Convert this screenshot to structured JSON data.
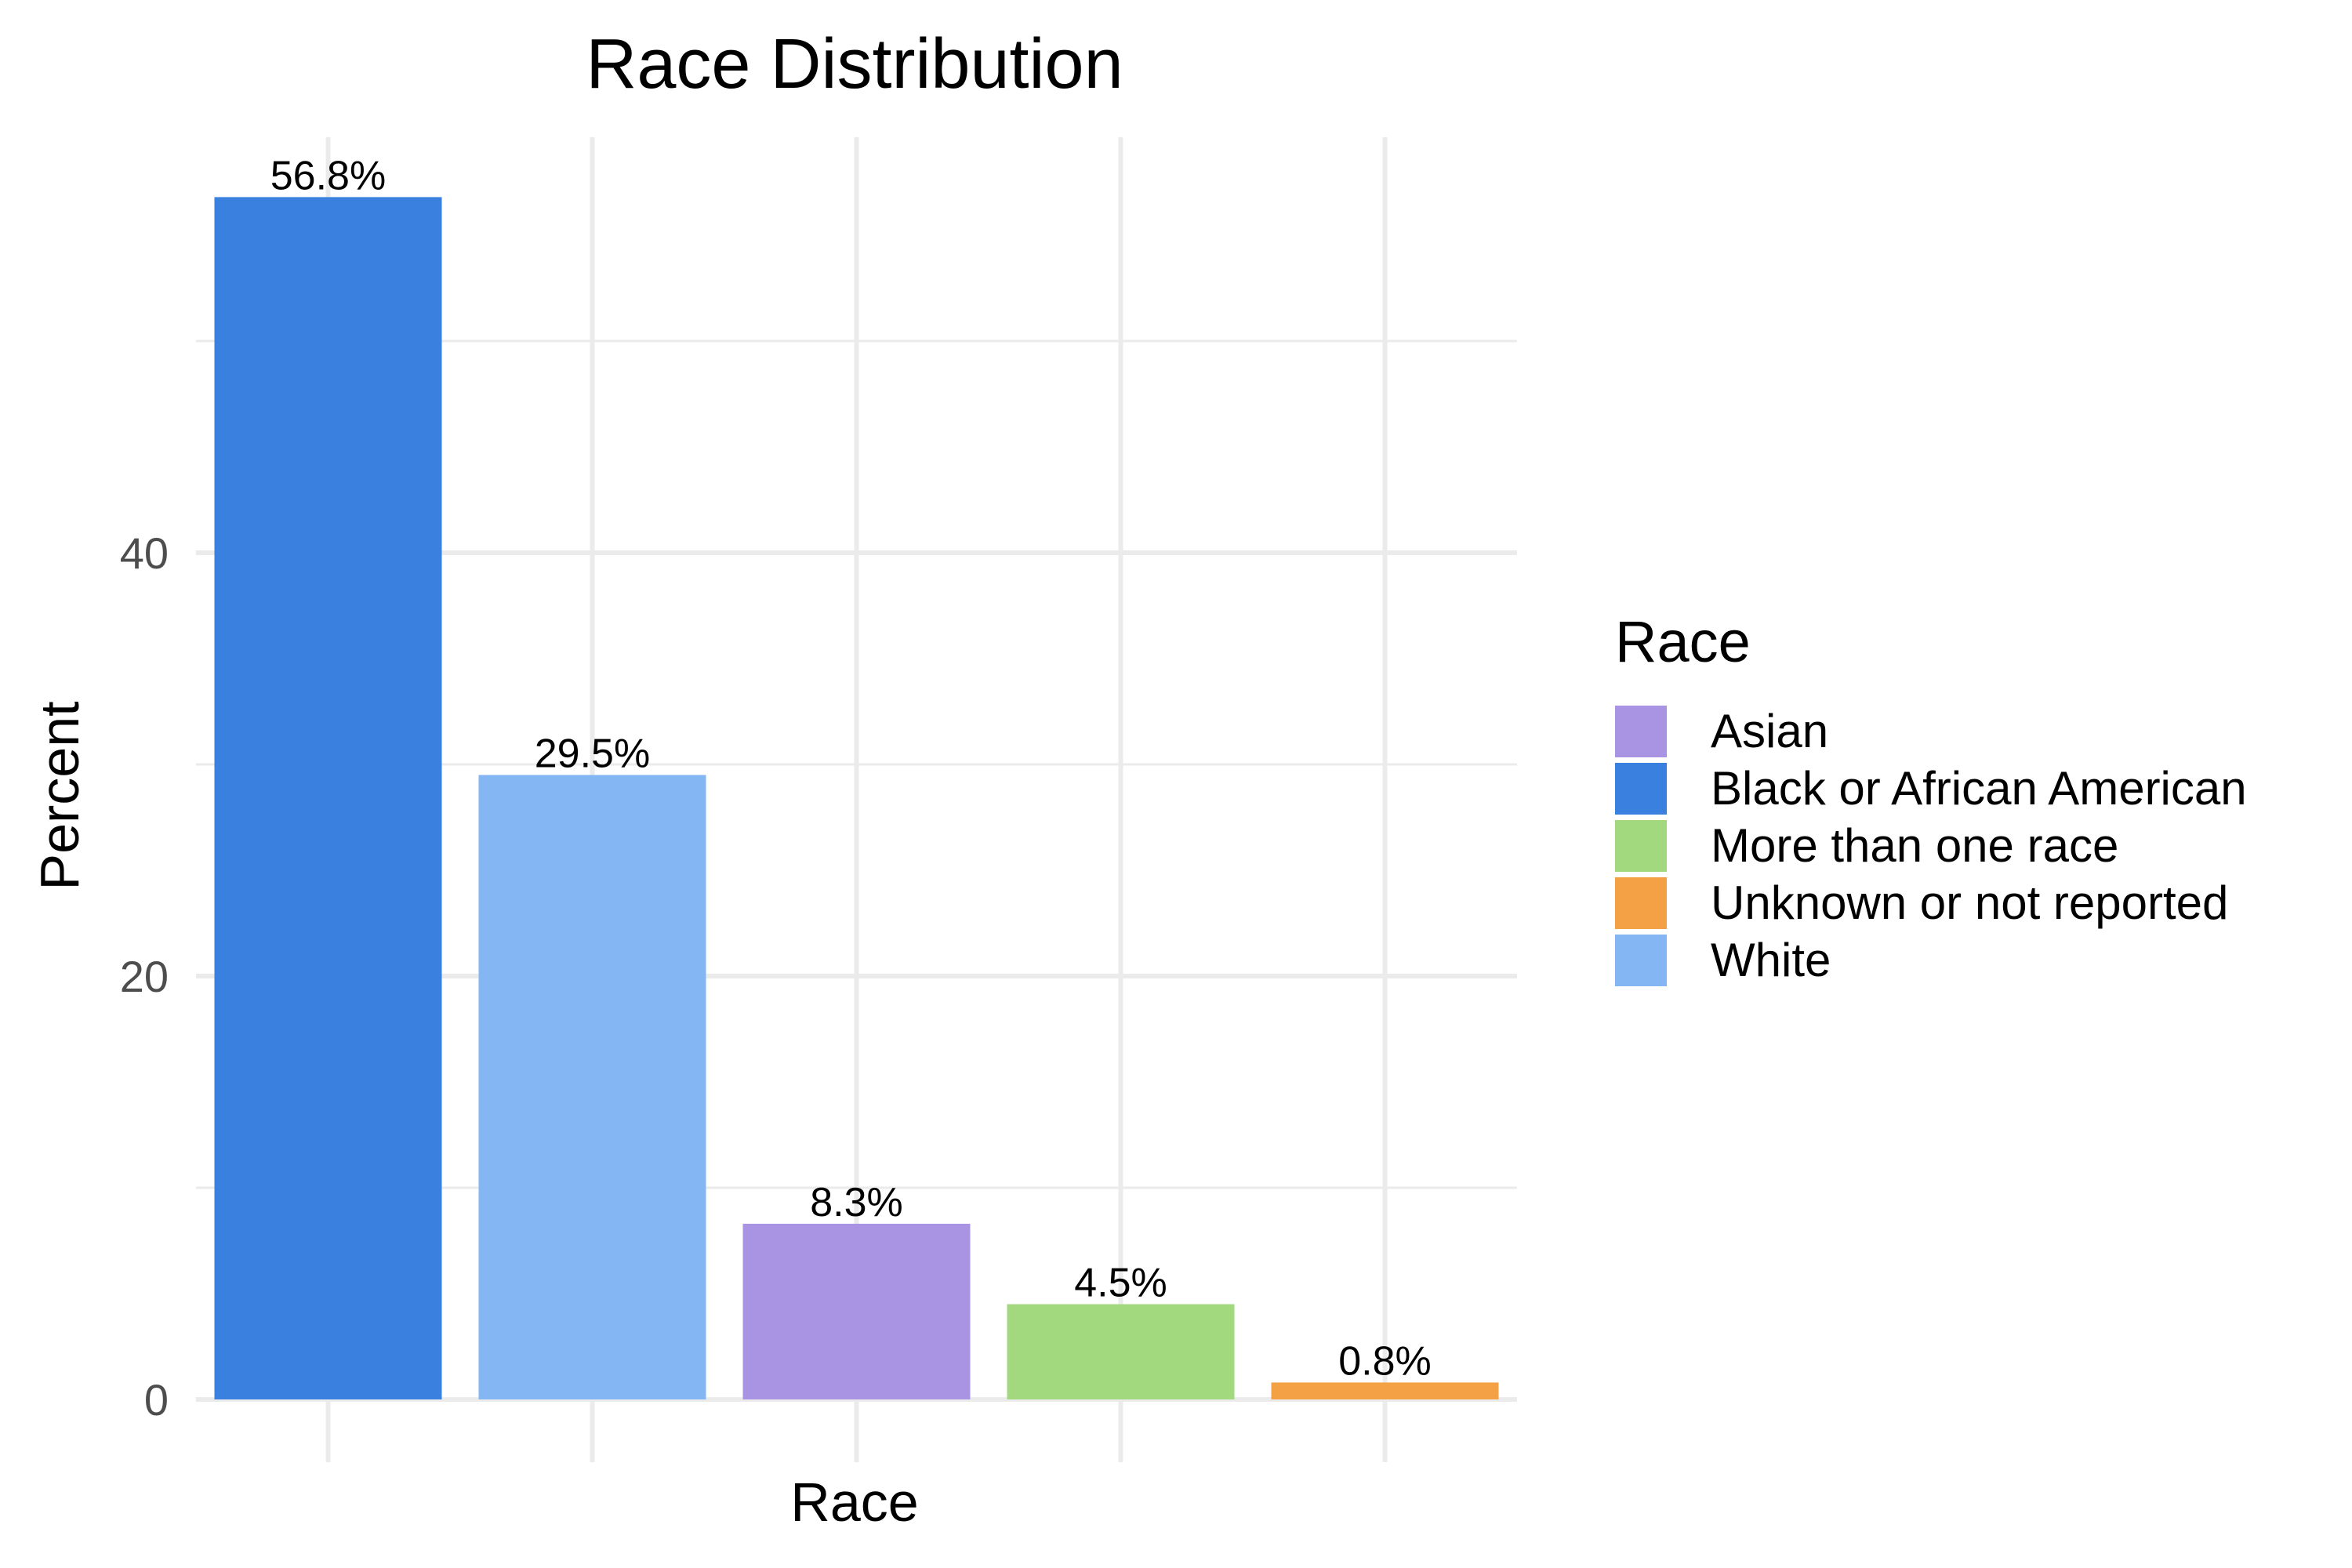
{
  "chart_data": {
    "type": "bar",
    "title": "Race Distribution",
    "xlabel": "Race",
    "ylabel": "Percent",
    "ylim": [
      0,
      59.6
    ],
    "yticks": [
      0,
      20,
      40
    ],
    "grid": true,
    "categories": [
      "Black or African American",
      "White",
      "Asian",
      "More than one race",
      "Unknown or not reported"
    ],
    "values": [
      56.8,
      29.5,
      8.3,
      4.5,
      0.8
    ],
    "data_labels": [
      "56.8%",
      "29.5%",
      "8.3%",
      "4.5%",
      "0.8%"
    ],
    "colors": [
      "#3a80de",
      "#84b6f4",
      "#a993e3",
      "#a2d97e",
      "#f4a045"
    ],
    "legend": {
      "title": "Race",
      "position": "right",
      "items": [
        {
          "label": "Asian",
          "color": "#a993e3"
        },
        {
          "label": "Black or African American",
          "color": "#3a80de"
        },
        {
          "label": "More than one race",
          "color": "#a2d97e"
        },
        {
          "label": "Unknown or not reported",
          "color": "#f4a045"
        },
        {
          "label": "White",
          "color": "#84b6f4"
        }
      ]
    }
  }
}
